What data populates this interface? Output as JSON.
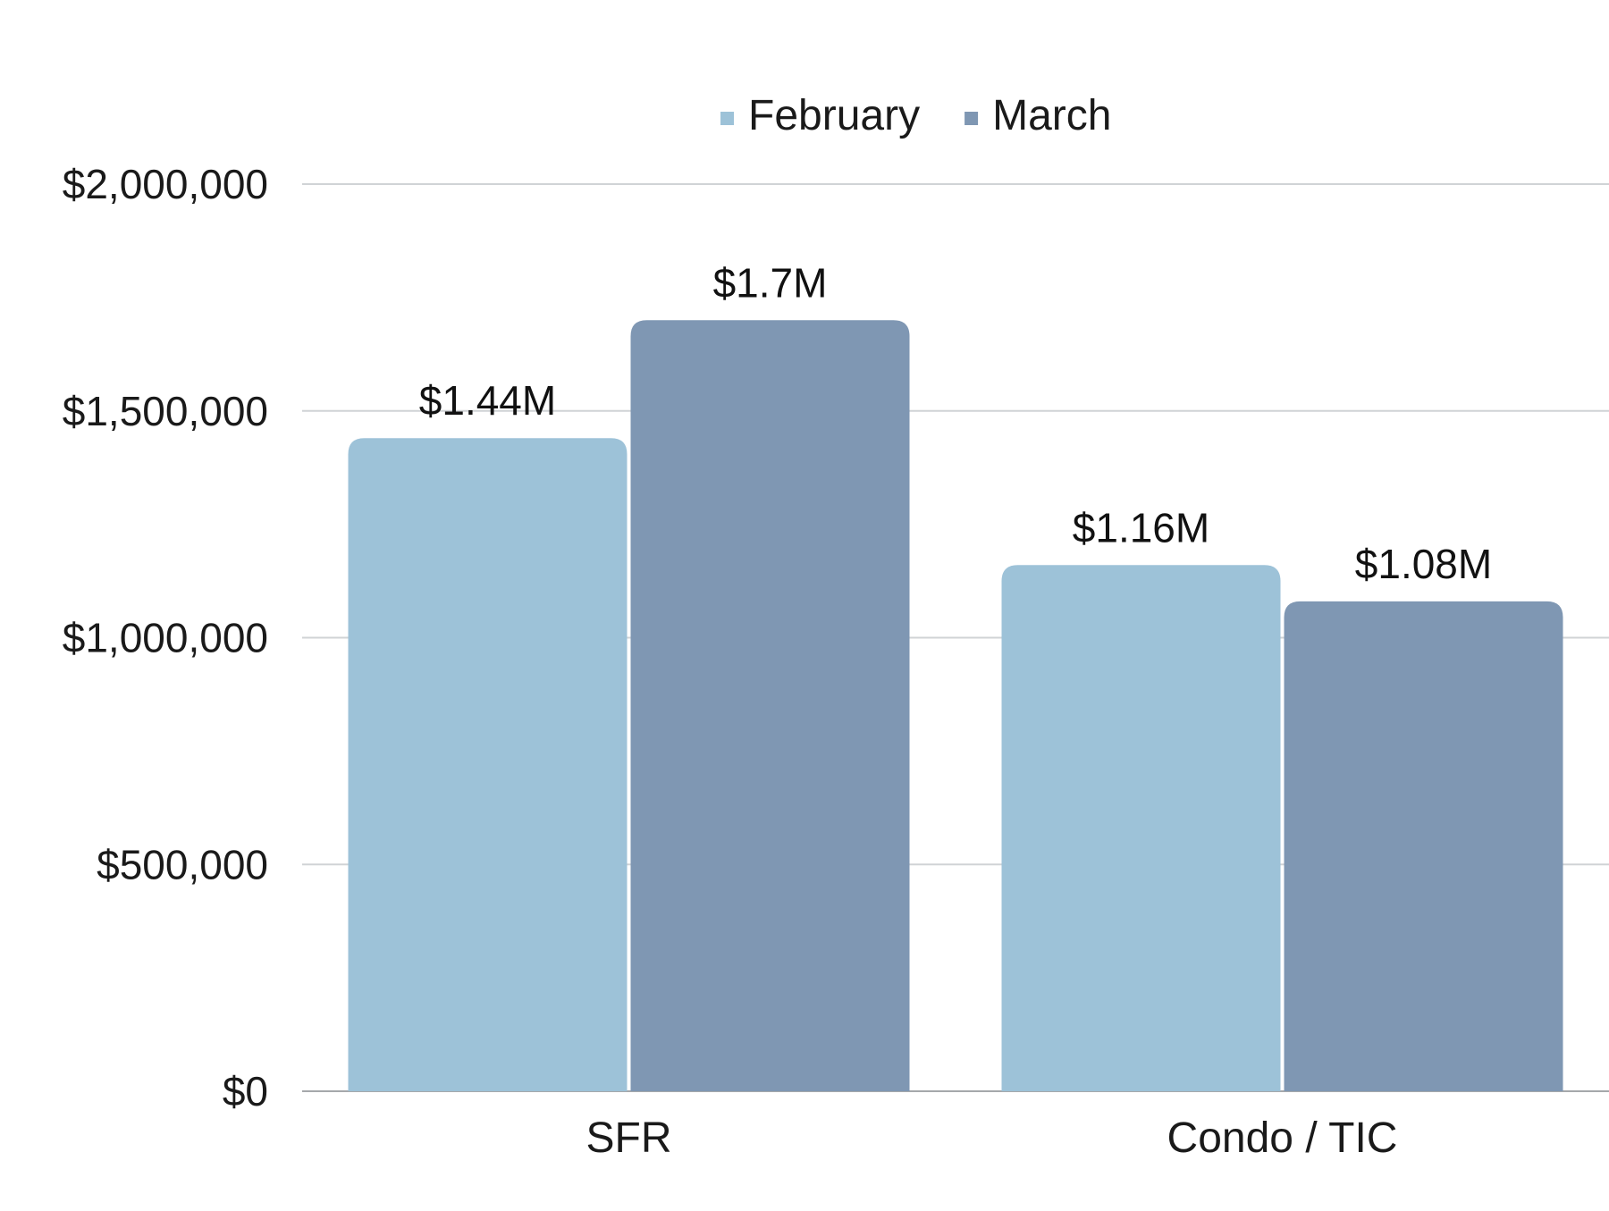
{
  "chart_data": {
    "type": "bar",
    "categories": [
      "SFR",
      "Condo / TIC"
    ],
    "series": [
      {
        "name": "February",
        "values": [
          1440000,
          1160000
        ],
        "labels": [
          "$1.44M",
          "$1.16M"
        ],
        "color": "#9dc2d8"
      },
      {
        "name": "March",
        "values": [
          1700000,
          1080000
        ],
        "labels": [
          "$1.7M",
          "$1.08M"
        ],
        "color": "#7f97b3"
      }
    ],
    "yticks": [
      0,
      500000,
      1000000,
      1500000,
      2000000
    ],
    "ytick_labels": [
      "$0",
      "$500,000",
      "$1,000,000",
      "$1,500,000",
      "$2,000,000"
    ],
    "ylim": [
      0,
      2000000
    ],
    "grid": true,
    "legend": "top-center",
    "title": "",
    "xlabel": "",
    "ylabel": ""
  }
}
